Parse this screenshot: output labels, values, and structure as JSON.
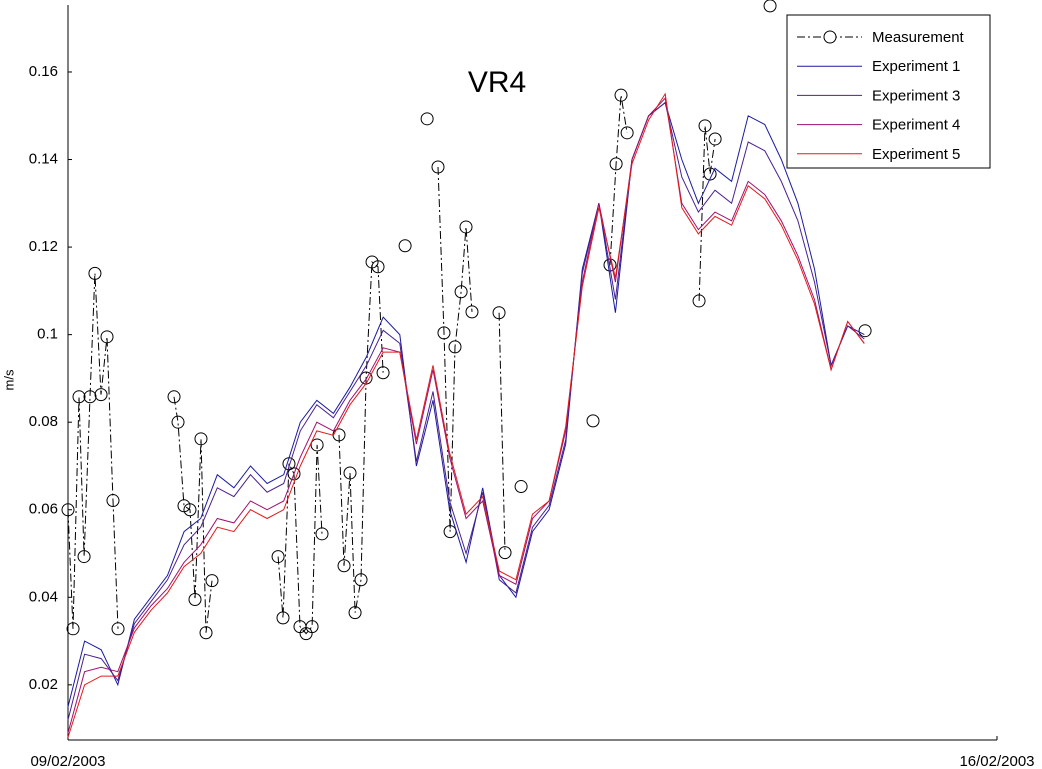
{
  "chart_data": {
    "type": "line",
    "title": "VR4",
    "ylabel": "m/s",
    "xlim": [
      0,
      7
    ],
    "xticks": [
      {
        "value": 0,
        "label": "09/02/2003"
      },
      {
        "value": 7,
        "label": "16/02/2003"
      }
    ],
    "ylim": [
      0.0074,
      0.1753
    ],
    "yticks": [
      0.02,
      0.04,
      0.06,
      0.08,
      0.1,
      0.12,
      0.14,
      0.16
    ],
    "grid": false,
    "legend_loc": "upper right",
    "series": [
      {
        "name": "Measurement",
        "color": "#000000",
        "linestyle": "-.",
        "marker": "o",
        "x": [
          0,
          0.038,
          0.083,
          0.121,
          0.166,
          0.203,
          0.249,
          0.294,
          0.339,
          0.377,
          null,
          0.799,
          0.829,
          0.874,
          0.919,
          0.957,
          1.002,
          1.04,
          1.085,
          null,
          1.583,
          1.62,
          1.665,
          1.703,
          1.748,
          1.794,
          1.839,
          1.877,
          1.914,
          null,
          2.042,
          2.08,
          2.125,
          2.163,
          2.208,
          2.246,
          2.291,
          2.336,
          2.374,
          null,
          2.54,
          null,
          2.706,
          null,
          2.788,
          2.833,
          2.879,
          2.916,
          2.962,
          2.999,
          3.044,
          null,
          3.248,
          3.293,
          null,
          3.414,
          null,
          3.956,
          null,
          4.084,
          4.13,
          4.167,
          4.213,
          null,
          4.755,
          4.8,
          4.838,
          4.876,
          null,
          5.29,
          null,
          6.006
        ],
        "values": [
          0.06,
          0.0328,
          0.0858,
          0.0493,
          0.0858,
          0.114,
          0.0863,
          0.0995,
          0.0621,
          0.0328,
          null,
          0.0858,
          0.08,
          0.0609,
          0.06,
          0.0395,
          0.0762,
          0.0319,
          0.0438,
          null,
          0.0493,
          0.0353,
          0.0705,
          0.0682,
          0.0333,
          0.0317,
          0.0333,
          0.0748,
          0.0545,
          null,
          0.0771,
          0.0472,
          0.0684,
          0.0365,
          0.044,
          0.0901,
          0.1166,
          0.1155,
          0.0913,
          null,
          0.1203,
          null,
          0.1493,
          null,
          0.1383,
          0.1004,
          0.055,
          0.0972,
          0.1098,
          0.1246,
          0.1052,
          null,
          0.105,
          0.0502,
          null,
          0.0653,
          null,
          0.0803,
          null,
          0.1159,
          0.139,
          0.1547,
          0.1461,
          null,
          0.1077,
          0.1477,
          0.1367,
          0.1447,
          null,
          0.1751,
          null,
          0.1009
        ]
      },
      {
        "name": "Experiment 1",
        "color": "#1a1aa0",
        "x": [
          0,
          0.125,
          0.25,
          0.375,
          0.5,
          0.625,
          0.75,
          0.875,
          1,
          1.125,
          1.25,
          1.375,
          1.5,
          1.625,
          1.75,
          1.875,
          2,
          2.125,
          2.25,
          2.375,
          2.5,
          2.625,
          2.75,
          2.875,
          3,
          3.125,
          3.25,
          3.375,
          3.5,
          3.625,
          3.75,
          3.875,
          4,
          4.125,
          4.25,
          4.375,
          4.5,
          4.625,
          4.75,
          4.875,
          5,
          5.125,
          5.25,
          5.375,
          5.5,
          5.625,
          5.75,
          5.875,
          6
        ],
        "values": [
          0.015,
          0.03,
          0.028,
          0.02,
          0.035,
          0.04,
          0.045,
          0.055,
          0.058,
          0.068,
          0.065,
          0.07,
          0.066,
          0.068,
          0.08,
          0.085,
          0.082,
          0.088,
          0.095,
          0.104,
          0.1,
          0.07,
          0.085,
          0.06,
          0.048,
          0.065,
          0.045,
          0.04,
          0.055,
          0.06,
          0.075,
          0.115,
          0.13,
          0.105,
          0.14,
          0.15,
          0.153,
          0.14,
          0.13,
          0.138,
          0.135,
          0.15,
          0.148,
          0.14,
          0.13,
          0.115,
          0.093,
          0.102,
          0.1
        ]
      },
      {
        "name": "Experiment 3",
        "color": "#4a2090",
        "x": [
          0,
          0.125,
          0.25,
          0.375,
          0.5,
          0.625,
          0.75,
          0.875,
          1,
          1.125,
          1.25,
          1.375,
          1.5,
          1.625,
          1.75,
          1.875,
          2,
          2.125,
          2.25,
          2.375,
          2.5,
          2.625,
          2.75,
          2.875,
          3,
          3.125,
          3.25,
          3.375,
          3.5,
          3.625,
          3.75,
          3.875,
          4,
          4.125,
          4.25,
          4.375,
          4.5,
          4.625,
          4.75,
          4.875,
          5,
          5.125,
          5.25,
          5.375,
          5.5,
          5.625,
          5.75,
          5.875,
          6
        ],
        "values": [
          0.012,
          0.027,
          0.026,
          0.021,
          0.034,
          0.039,
          0.044,
          0.052,
          0.056,
          0.065,
          0.063,
          0.068,
          0.064,
          0.066,
          0.078,
          0.084,
          0.081,
          0.087,
          0.093,
          0.101,
          0.098,
          0.071,
          0.087,
          0.062,
          0.05,
          0.064,
          0.044,
          0.041,
          0.056,
          0.061,
          0.076,
          0.114,
          0.13,
          0.108,
          0.14,
          0.15,
          0.153,
          0.136,
          0.128,
          0.133,
          0.13,
          0.144,
          0.142,
          0.135,
          0.126,
          0.112,
          0.093,
          0.102,
          0.099
        ]
      },
      {
        "name": "Experiment 4",
        "color": "#a01070",
        "x": [
          0,
          0.125,
          0.25,
          0.375,
          0.5,
          0.625,
          0.75,
          0.875,
          1,
          1.125,
          1.25,
          1.375,
          1.5,
          1.625,
          1.75,
          1.875,
          2,
          2.125,
          2.25,
          2.375,
          2.5,
          2.625,
          2.75,
          2.875,
          3,
          3.125,
          3.25,
          3.375,
          3.5,
          3.625,
          3.75,
          3.875,
          4,
          4.125,
          4.25,
          4.375,
          4.5,
          4.625,
          4.75,
          4.875,
          5,
          5.125,
          5.25,
          5.375,
          5.5,
          5.625,
          5.75,
          5.875,
          6
        ],
        "values": [
          0.009,
          0.023,
          0.024,
          0.023,
          0.033,
          0.038,
          0.042,
          0.048,
          0.052,
          0.058,
          0.057,
          0.062,
          0.06,
          0.062,
          0.072,
          0.08,
          0.078,
          0.085,
          0.09,
          0.097,
          0.096,
          0.075,
          0.092,
          0.072,
          0.058,
          0.062,
          0.045,
          0.043,
          0.058,
          0.062,
          0.078,
          0.112,
          0.13,
          0.112,
          0.14,
          0.15,
          0.154,
          0.13,
          0.124,
          0.128,
          0.126,
          0.135,
          0.132,
          0.126,
          0.118,
          0.108,
          0.092,
          0.103,
          0.098
        ]
      },
      {
        "name": "Experiment 5",
        "color": "#e01c1c",
        "x": [
          0,
          0.125,
          0.25,
          0.375,
          0.5,
          0.625,
          0.75,
          0.875,
          1,
          1.125,
          1.25,
          1.375,
          1.5,
          1.625,
          1.75,
          1.875,
          2,
          2.125,
          2.25,
          2.375,
          2.5,
          2.625,
          2.75,
          2.875,
          3,
          3.125,
          3.25,
          3.375,
          3.5,
          3.625,
          3.75,
          3.875,
          4,
          4.125,
          4.25,
          4.375,
          4.5,
          4.625,
          4.75,
          4.875,
          5,
          5.125,
          5.25,
          5.375,
          5.5,
          5.625,
          5.75,
          5.875,
          6
        ],
        "values": [
          0.008,
          0.02,
          0.022,
          0.022,
          0.032,
          0.037,
          0.041,
          0.047,
          0.05,
          0.056,
          0.055,
          0.06,
          0.058,
          0.06,
          0.07,
          0.078,
          0.077,
          0.084,
          0.089,
          0.096,
          0.096,
          0.076,
          0.093,
          0.073,
          0.059,
          0.063,
          0.046,
          0.044,
          0.059,
          0.062,
          0.079,
          0.111,
          0.129,
          0.113,
          0.139,
          0.149,
          0.155,
          0.129,
          0.123,
          0.127,
          0.125,
          0.134,
          0.131,
          0.125,
          0.117,
          0.107,
          0.092,
          0.103,
          0.098
        ]
      }
    ]
  }
}
